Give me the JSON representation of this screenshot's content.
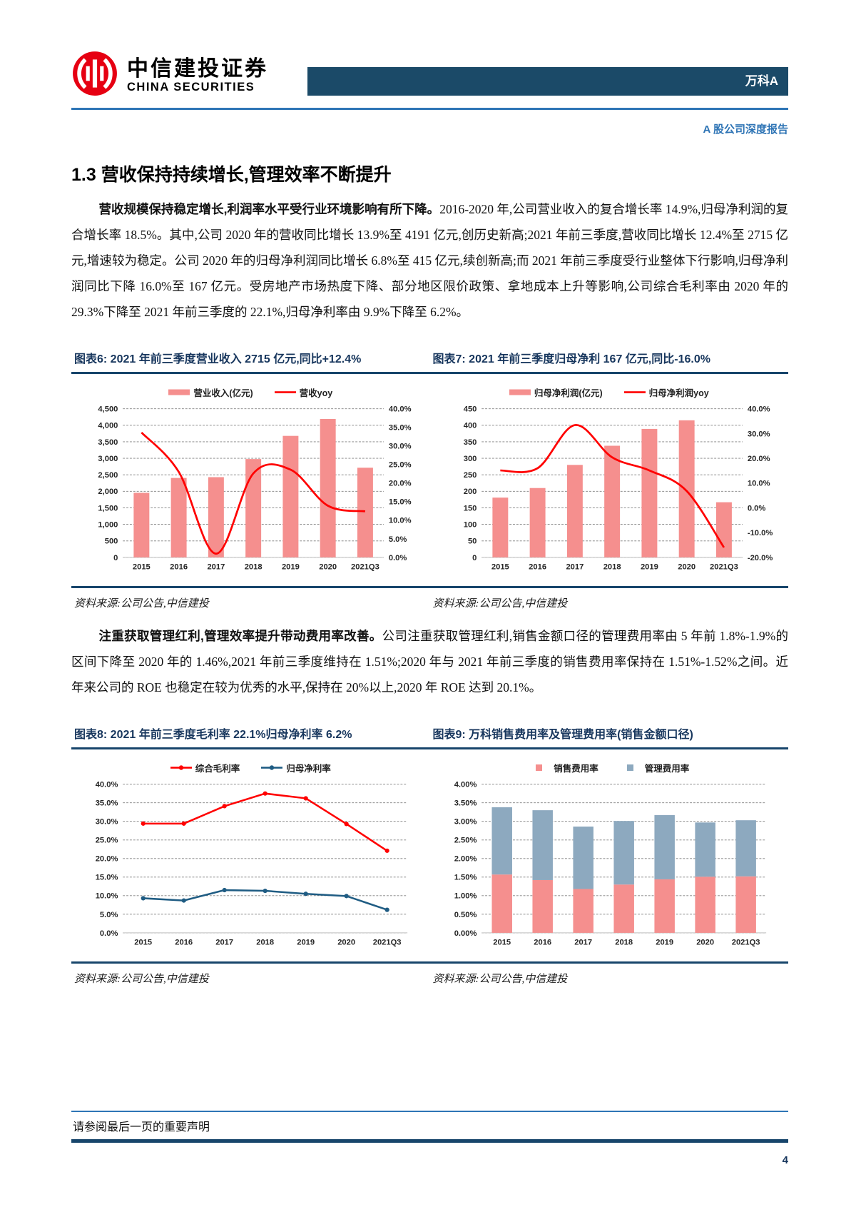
{
  "header": {
    "brand_cn": "中信建投证券",
    "brand_en": "CHINA SECURITIES",
    "stock_name": "万科A",
    "report_type": "A 股公司深度报告"
  },
  "section": {
    "heading": "1.3 营收保持持续增长,管理效率不断提升"
  },
  "paragraphs": {
    "p1_lead": "营收规模保持稳定增长,利润率水平受行业环境影响有所下降。",
    "p1_rest": "2016-2020 年,公司营业收入的复合增长率 14.9%,归母净利润的复合增长率 18.5%。其中,公司 2020 年的营收同比增长 13.9%至 4191 亿元,创历史新高;2021 年前三季度,营收同比增长 12.4%至 2715 亿元,增速较为稳定。公司 2020 年的归母净利润同比增长 6.8%至 415 亿元,续创新高;而 2021 年前三季度受行业整体下行影响,归母净利润同比下降 16.0%至 167 亿元。受房地产市场热度下降、部分地区限价政策、拿地成本上升等影响,公司综合毛利率由 2020 年的 29.3%下降至 2021 年前三季度的 22.1%,归母净利率由 9.9%下降至 6.2%。",
    "p2_lead": "注重获取管理红利,管理效率提升带动费用率改善。",
    "p2_rest": "公司注重获取管理红利,销售金额口径的管理费用率由 5 年前 1.8%-1.9%的区间下降至 2020 年的 1.46%,2021 年前三季度维持在 1.51%;2020 年与 2021 年前三季度的销售费用率保持在 1.51%-1.52%之间。近年来公司的 ROE 也稳定在较为优秀的水平,保持在 20%以上,2020 年 ROE 达到 20.1%。"
  },
  "figures": [
    {
      "title": "图表6: 2021 年前三季度营业收入 2715 亿元,同比+12.4%",
      "source": "资料来源:公司公告,中信建投"
    },
    {
      "title": "图表7: 2021 年前三季度归母净利 167 亿元,同比-16.0%",
      "source": "资料来源:公司公告,中信建投"
    },
    {
      "title": "图表8: 2021 年前三季度毛利率 22.1%归母净利率 6.2%",
      "source": "资料来源:公司公告,中信建投"
    },
    {
      "title": "图表9: 万科销售费用率及管理费用率(销售金额口径)",
      "source": "资料来源:公司公告,中信建投"
    }
  ],
  "footer": {
    "disclaimer": "请参阅最后一页的重要声明",
    "page_number": "4"
  },
  "colors": {
    "brand_red": "#E60012",
    "banner_navy": "#1B4A68",
    "rule_blue": "#2E75B6",
    "rule_navy": "#17456B",
    "figure_title_navy": "#17365D",
    "bar_pink": "#F58F8E",
    "line_red": "#FF0000",
    "bar_bluegray": "#8DA9BF",
    "line_darkblue": "#1F5C83"
  },
  "chart_data": [
    {
      "id": "figure6",
      "type": "combo",
      "title": "2021 年前三季度营业收入 2715 亿元,同比+12.4%",
      "categories": [
        "2015",
        "2016",
        "2017",
        "2018",
        "2019",
        "2020",
        "2021Q3"
      ],
      "bar_series": {
        "name": "营业收入(亿元)",
        "color": "#F58F8E",
        "values": [
          1955,
          2405,
          2429,
          2977,
          3679,
          4191,
          2715
        ]
      },
      "line_series": {
        "name": "营收yoy",
        "color": "#FF0000",
        "values": [
          33.6,
          23.0,
          1.0,
          22.6,
          23.6,
          13.9,
          12.4
        ]
      },
      "left_axis": {
        "min": 0,
        "max": 4500,
        "step": 500,
        "format": "num"
      },
      "right_axis": {
        "min": 0,
        "max": 40,
        "step": 5,
        "format": "pct1"
      },
      "grid": true,
      "legend_position": "top",
      "legend": [
        {
          "label": "营业收入(亿元)",
          "swatch": "bar",
          "color": "#F58F8E"
        },
        {
          "label": "营收yoy",
          "swatch": "line",
          "color": "#FF0000"
        }
      ]
    },
    {
      "id": "figure7",
      "type": "combo",
      "title": "2021 年前三季度归母净利 167 亿元,同比-16.0%",
      "categories": [
        "2015",
        "2016",
        "2017",
        "2018",
        "2019",
        "2020",
        "2021Q3"
      ],
      "bar_series": {
        "name": "归母净利润(亿元)",
        "color": "#F58F8E",
        "values": [
          181,
          210,
          280,
          338,
          389,
          415,
          167
        ]
      },
      "line_series": {
        "name": "归母净利润yoy",
        "color": "#FF0000",
        "values": [
          15.1,
          16.0,
          33.4,
          20.4,
          15.1,
          6.8,
          -16.0
        ]
      },
      "left_axis": {
        "min": 0,
        "max": 450,
        "step": 50,
        "format": "num"
      },
      "right_axis": {
        "min": -20,
        "max": 40,
        "step": 10,
        "format": "pct1"
      },
      "grid": true,
      "legend_position": "top",
      "legend": [
        {
          "label": "归母净利润(亿元)",
          "swatch": "bar",
          "color": "#F58F8E"
        },
        {
          "label": "归母净利润yoy",
          "swatch": "line",
          "color": "#FF0000"
        }
      ]
    },
    {
      "id": "figure8",
      "type": "lines",
      "title": "2021 年前三季度毛利率 22.1%归母净利率 6.2%",
      "categories": [
        "2015",
        "2016",
        "2017",
        "2018",
        "2019",
        "2020",
        "2021Q3"
      ],
      "series": [
        {
          "name": "综合毛利率",
          "color": "#FF0000",
          "values": [
            29.4,
            29.4,
            34.1,
            37.5,
            36.2,
            29.3,
            22.1
          ]
        },
        {
          "name": "归母净利率",
          "color": "#1F5C83",
          "values": [
            9.3,
            8.7,
            11.5,
            11.3,
            10.5,
            9.9,
            6.2
          ]
        }
      ],
      "left_axis": {
        "min": 0,
        "max": 40,
        "step": 5,
        "format": "pct1"
      },
      "grid": true,
      "legend_position": "top",
      "legend": [
        {
          "label": "综合毛利率",
          "swatch": "dotline",
          "color": "#FF0000"
        },
        {
          "label": "归母净利率",
          "swatch": "dotline",
          "color": "#1F5C83"
        }
      ]
    },
    {
      "id": "figure9",
      "type": "stacked",
      "title": "万科销售费用率及管理费用率(销售金额口径)",
      "categories": [
        "2015",
        "2016",
        "2017",
        "2018",
        "2019",
        "2020",
        "2021Q3"
      ],
      "series": [
        {
          "name": "销售费用率",
          "color": "#F58F8E",
          "values": [
            1.57,
            1.42,
            1.18,
            1.3,
            1.44,
            1.51,
            1.52
          ]
        },
        {
          "name": "管理费用率",
          "color": "#8DA9BF",
          "values": [
            1.81,
            1.88,
            1.68,
            1.71,
            1.73,
            1.46,
            1.51
          ]
        }
      ],
      "left_axis": {
        "min": 0,
        "max": 4,
        "step": 0.5,
        "format": "pct2"
      },
      "grid": true,
      "legend_position": "top",
      "legend": [
        {
          "label": "销售费用率",
          "swatch": "square",
          "color": "#F58F8E"
        },
        {
          "label": "管理费用率",
          "swatch": "square",
          "color": "#8DA9BF"
        }
      ]
    }
  ]
}
